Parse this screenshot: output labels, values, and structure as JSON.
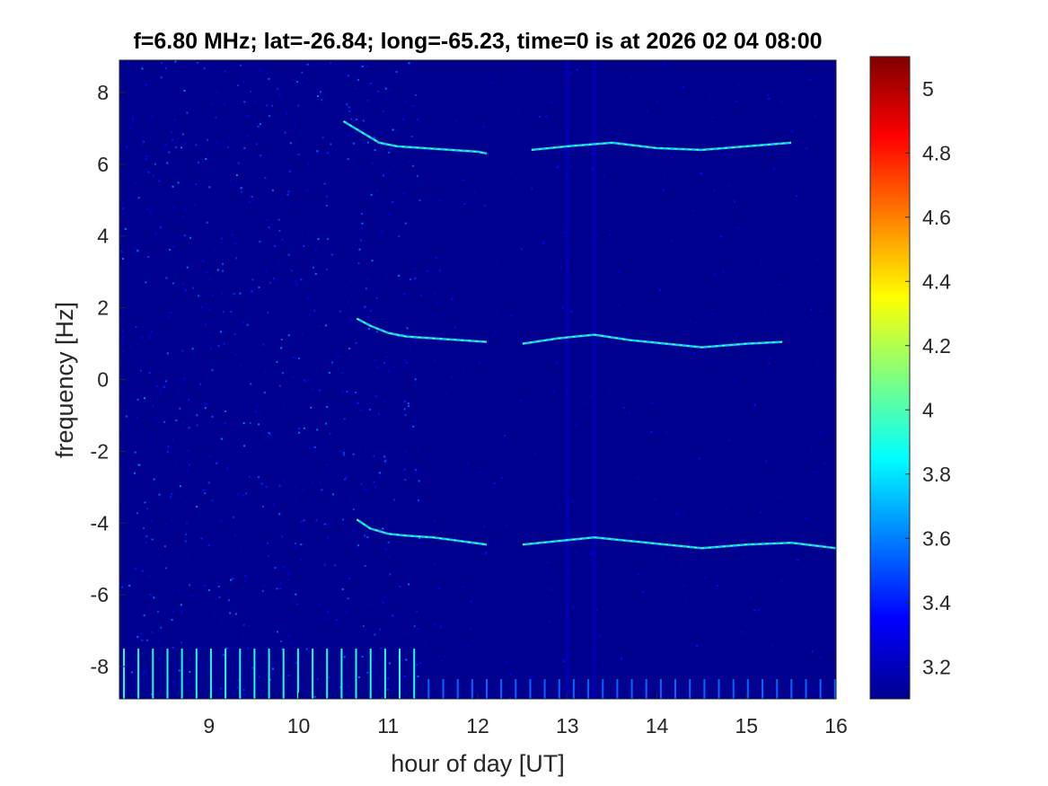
{
  "chart_data": {
    "type": "heatmap",
    "title": "f=6.80 MHz;  lat=-26.84; long=-65.23, time=0 is at 2026 02 04 08:00",
    "xlabel": "hour of day [UT]",
    "ylabel": "frequency [Hz]",
    "xlim": [
      8.0,
      16.0
    ],
    "ylim": [
      -8.9,
      8.9
    ],
    "x_ticks": [
      9,
      10,
      11,
      12,
      13,
      14,
      15,
      16
    ],
    "x_tick_labels": [
      "9",
      "10",
      "11",
      "12",
      "13",
      "14",
      "15",
      "16"
    ],
    "y_ticks": [
      8,
      6,
      4,
      2,
      0,
      -2,
      -4,
      -6,
      -8
    ],
    "y_tick_labels": [
      "8",
      "6",
      "4",
      "2",
      "0",
      "-2",
      "-4",
      "-6",
      "-8"
    ],
    "colormap": "jet",
    "color_limits": [
      3.1,
      5.1
    ],
    "colorbar_ticks": [
      5,
      4.8,
      4.6,
      4.4,
      4.2,
      4,
      3.8,
      3.6,
      3.4,
      3.2
    ],
    "colorbar_tick_labels": [
      "5",
      "4.8",
      "4.6",
      "4.4",
      "4.2",
      "4",
      "3.8",
      "3.6",
      "3.4",
      "3.2"
    ],
    "background_level": 3.15,
    "traces": [
      {
        "segments": [
          {
            "x": [
              10.5,
              10.7,
              10.9,
              11.1,
              11.4,
              11.7,
              12.0,
              12.1
            ],
            "y": [
              7.2,
              6.9,
              6.6,
              6.5,
              6.45,
              6.4,
              6.35,
              6.3
            ]
          },
          {
            "x": [
              12.6,
              13.0,
              13.5,
              14.0,
              14.5,
              15.0,
              15.5
            ],
            "y": [
              6.4,
              6.5,
              6.6,
              6.45,
              6.4,
              6.5,
              6.6
            ]
          }
        ]
      },
      {
        "segments": [
          {
            "x": [
              10.65,
              10.8,
              11.0,
              11.2,
              11.5,
              11.8,
              12.1
            ],
            "y": [
              1.7,
              1.5,
              1.3,
              1.2,
              1.15,
              1.1,
              1.05
            ]
          },
          {
            "x": [
              12.5,
              12.9,
              13.3,
              13.7,
              14.1,
              14.5,
              15.0,
              15.4
            ],
            "y": [
              1.0,
              1.15,
              1.25,
              1.1,
              1.0,
              0.9,
              1.0,
              1.05
            ]
          }
        ]
      },
      {
        "segments": [
          {
            "x": [
              10.65,
              10.8,
              11.0,
              11.2,
              11.5,
              11.8,
              12.1
            ],
            "y": [
              -3.9,
              -4.15,
              -4.3,
              -4.35,
              -4.4,
              -4.5,
              -4.6
            ]
          },
          {
            "x": [
              12.5,
              12.9,
              13.3,
              13.7,
              14.1,
              14.5,
              15.0,
              15.5,
              16.0
            ],
            "y": [
              -4.6,
              -4.5,
              -4.4,
              -4.5,
              -4.6,
              -4.7,
              -4.6,
              -4.55,
              -4.7
            ]
          }
        ]
      }
    ]
  }
}
